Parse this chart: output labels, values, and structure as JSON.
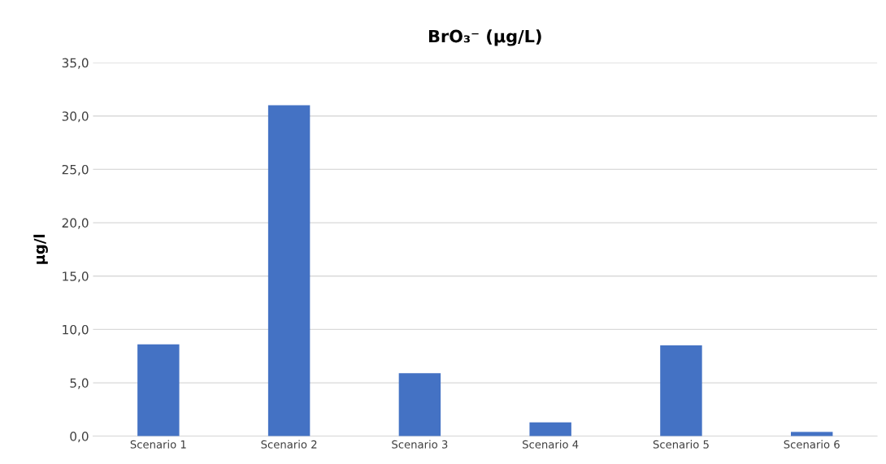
{
  "chart_data": {
    "type": "bar",
    "title": "BrO₃⁻ (µg/L)",
    "ylabel": "µg/l",
    "categories": [
      "Scenario 1",
      "Scenario 2",
      "Scenario 3",
      "Scenario 4",
      "Scenario 5",
      "Scenario 6"
    ],
    "values": [
      8.6,
      31.0,
      5.9,
      1.3,
      8.5,
      0.4
    ],
    "color": "#4472c4",
    "ylim": [
      0,
      35
    ],
    "yticks": [
      {
        "value": 0,
        "label": "0,0"
      },
      {
        "value": 5,
        "label": "5,0"
      },
      {
        "value": 10,
        "label": "10,0"
      },
      {
        "value": 15,
        "label": "15,0"
      },
      {
        "value": 20,
        "label": "20,0"
      },
      {
        "value": 25,
        "label": "25,0"
      },
      {
        "value": 30,
        "label": "30,0"
      },
      {
        "value": 35,
        "label": "35,0"
      }
    ],
    "grid": "y"
  }
}
